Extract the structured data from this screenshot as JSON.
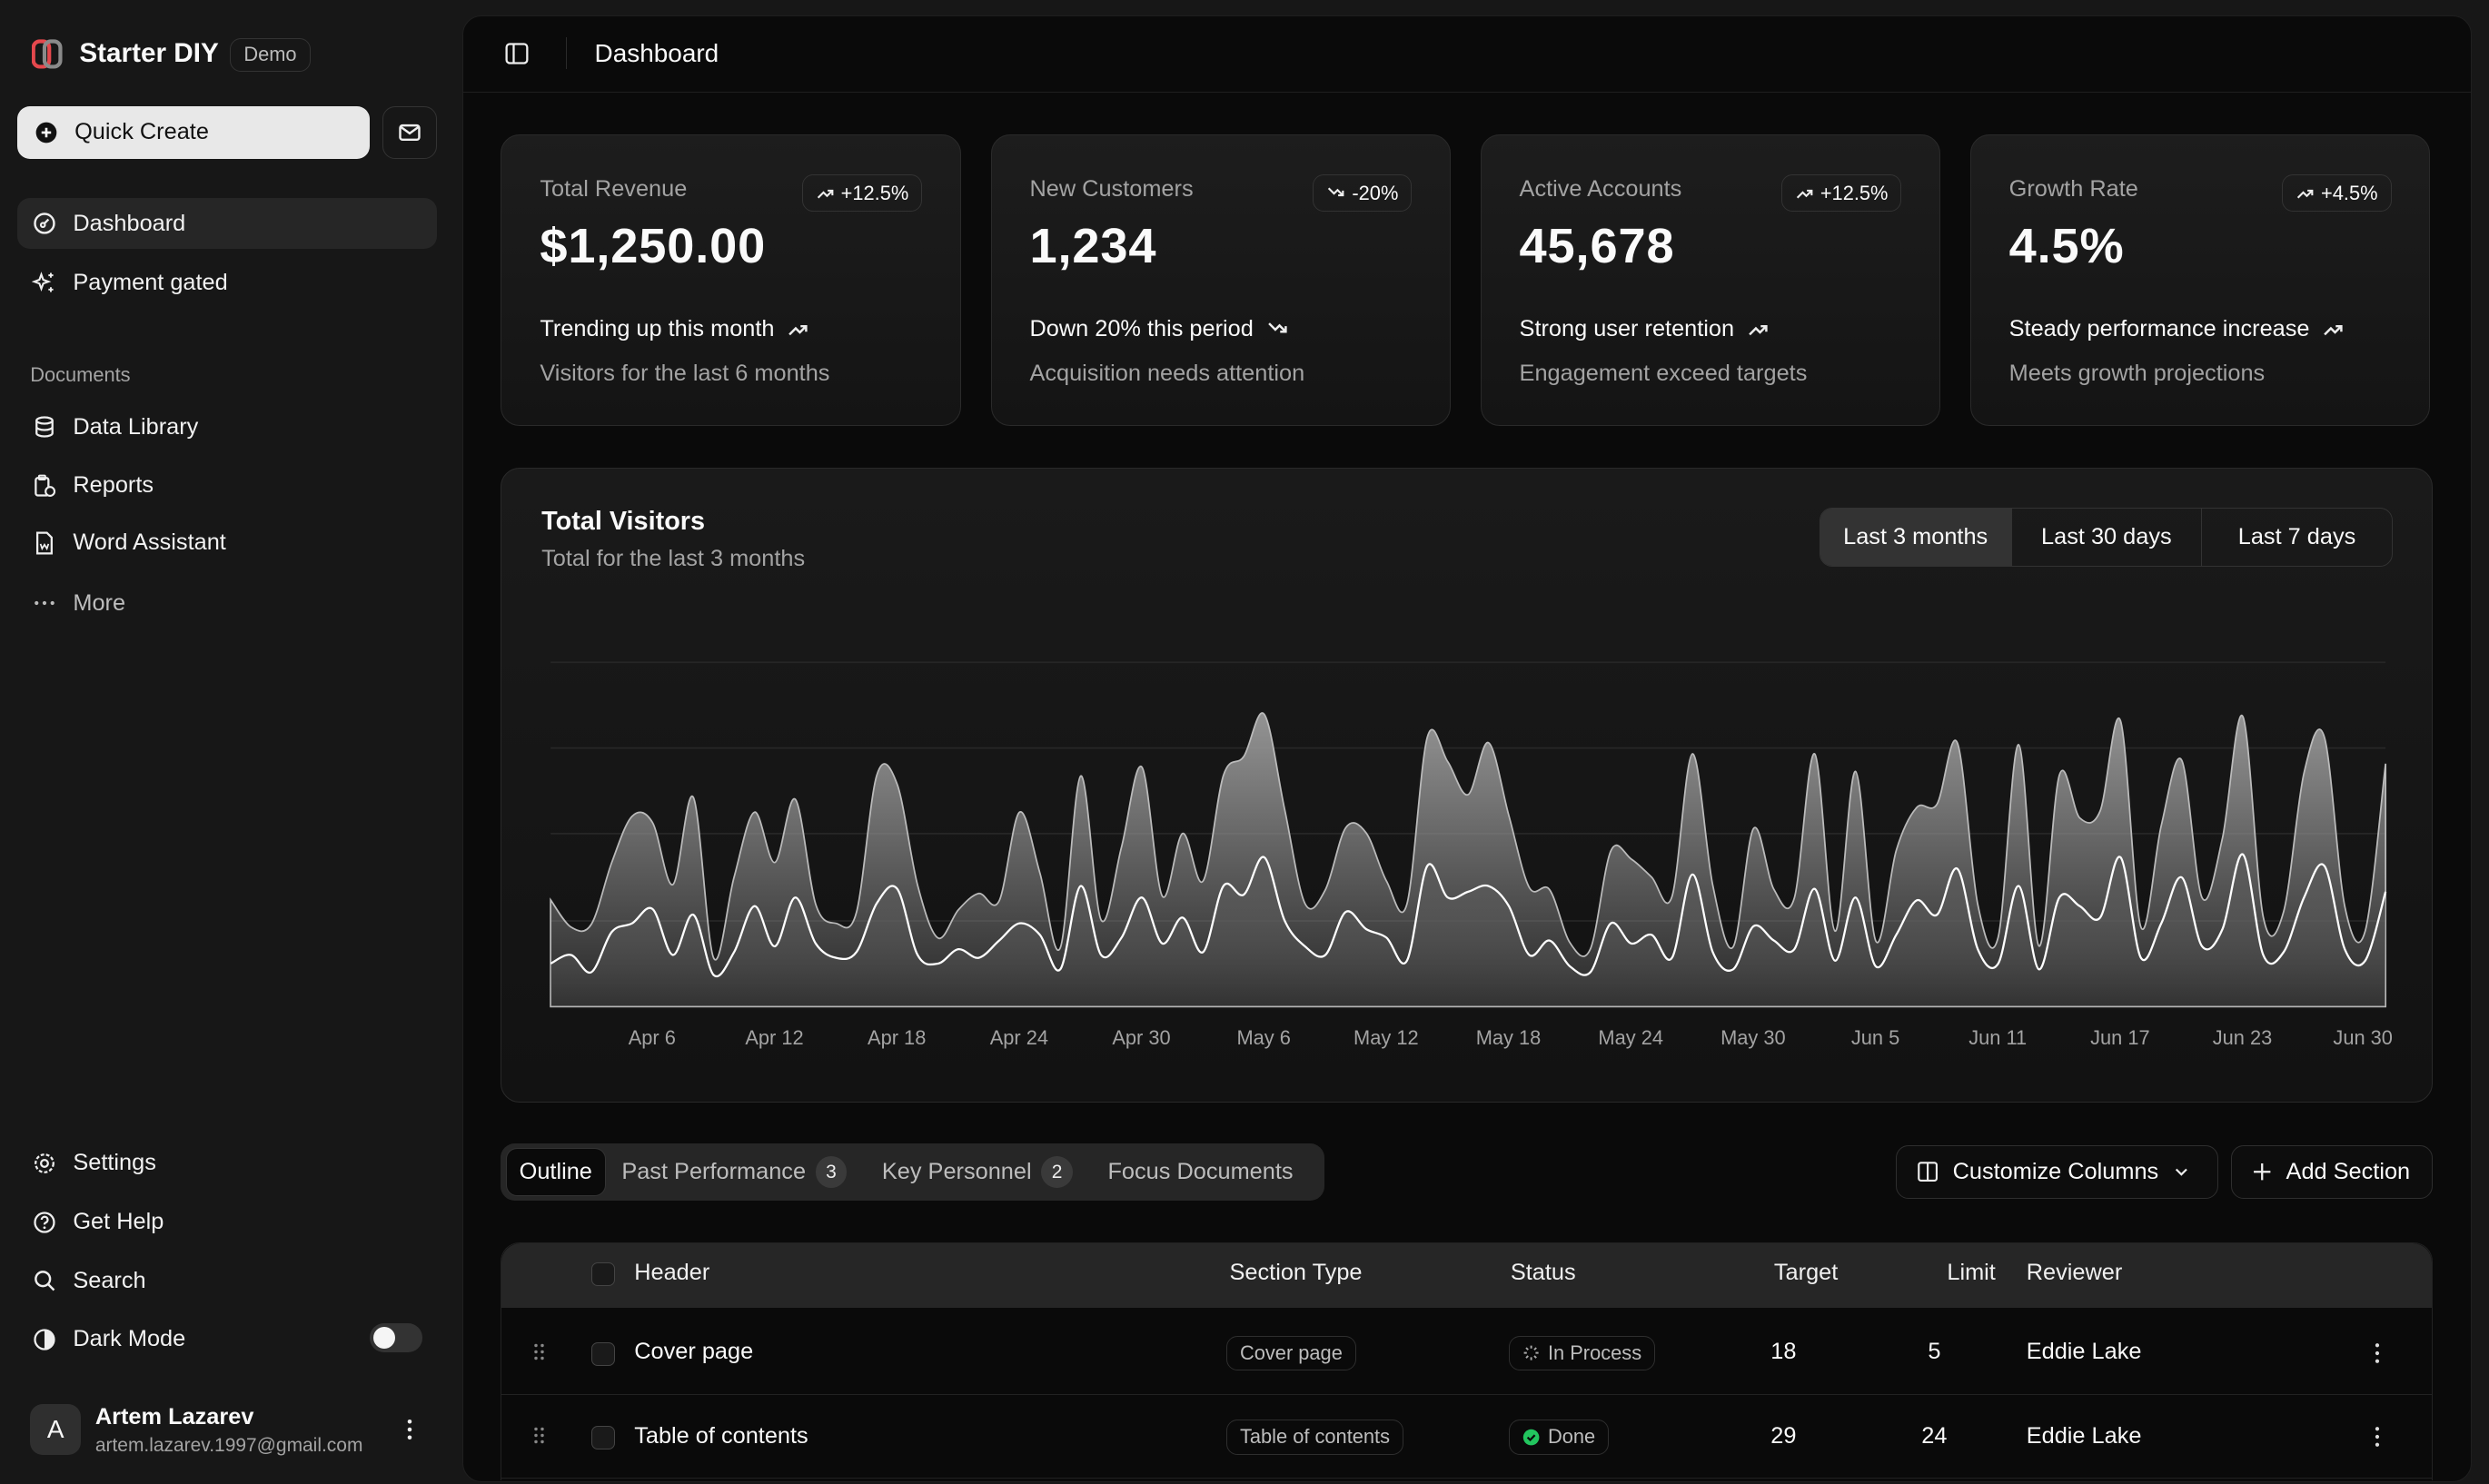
{
  "app": {
    "name": "Starter DIY",
    "badge": "Demo"
  },
  "sidebar": {
    "quick_create": "Quick Create",
    "nav": [
      {
        "label": "Dashboard",
        "icon": "gauge-icon",
        "active": true
      },
      {
        "label": "Payment gated",
        "icon": "sparkles-icon"
      }
    ],
    "documents_label": "Documents",
    "documents": [
      {
        "label": "Data Library",
        "icon": "database-icon"
      },
      {
        "label": "Reports",
        "icon": "clipboard-clock-icon"
      },
      {
        "label": "Word Assistant",
        "icon": "word-file-icon"
      },
      {
        "label": "More",
        "icon": "dots-icon"
      }
    ],
    "bottom": [
      {
        "label": "Settings",
        "icon": "gear-icon"
      },
      {
        "label": "Get Help",
        "icon": "help-icon"
      },
      {
        "label": "Search",
        "icon": "search-icon"
      },
      {
        "label": "Dark Mode",
        "icon": "theme-icon"
      }
    ],
    "dark_mode_on": false,
    "user": {
      "initial": "A",
      "name": "Artem Lazarev",
      "email": "artem.lazarev.1997@gmail.com"
    }
  },
  "header": {
    "title": "Dashboard"
  },
  "cards": [
    {
      "label": "Total Revenue",
      "value": "$1,250.00",
      "badge": "+12.5%",
      "trend": "up",
      "line1": "Trending up this month",
      "line2": "Visitors for the last 6 months"
    },
    {
      "label": "New Customers",
      "value": "1,234",
      "badge": "-20%",
      "trend": "down",
      "line1": "Down 20% this period",
      "line2": "Acquisition needs attention"
    },
    {
      "label": "Active Accounts",
      "value": "45,678",
      "badge": "+12.5%",
      "trend": "up",
      "line1": "Strong user retention",
      "line2": "Engagement exceed targets"
    },
    {
      "label": "Growth Rate",
      "value": "4.5%",
      "badge": "+4.5%",
      "trend": "up",
      "line1": "Steady performance increase",
      "line2": "Meets growth projections"
    }
  ],
  "visitors": {
    "title": "Total Visitors",
    "subtitle": "Total for the last 3 months",
    "ranges": [
      "Last 3 months",
      "Last 30 days",
      "Last 7 days"
    ],
    "selected_range": "Last 3 months"
  },
  "chart_data": {
    "type": "area",
    "stacked": true,
    "grid": true,
    "x_start": "Apr 1",
    "x_end": "Jun 30",
    "x_ticks": [
      "Apr 6",
      "Apr 12",
      "Apr 18",
      "Apr 24",
      "Apr 30",
      "May 6",
      "May 12",
      "May 18",
      "May 24",
      "May 30",
      "Jun 5",
      "Jun 11",
      "Jun 17",
      "Jun 23",
      "Jun 30"
    ],
    "colors": {
      "top": "#9a9a9a",
      "bottom": "#5a5a5a",
      "line": "#ffffff"
    },
    "series": [
      {
        "values": [
          150,
          180,
          120,
          260,
          290,
          340,
          180,
          320,
          110,
          190,
          350,
          210,
          380,
          220,
          170,
          190,
          360,
          410,
          180,
          150,
          200,
          170,
          230,
          290,
          250,
          130,
          420,
          180,
          240,
          380,
          220,
          310,
          190,
          420,
          390,
          520,
          300,
          210,
          180,
          330,
          270,
          240,
          160,
          490,
          380,
          400,
          420,
          350,
          180,
          230,
          140,
          120,
          290,
          220,
          250,
          170,
          460,
          190,
          130,
          280,
          230,
          200,
          410,
          160,
          380,
          140,
          250,
          370,
          320,
          480,
          200,
          150,
          420,
          130,
          380,
          350,
          310,
          520,
          170,
          290,
          450,
          210,
          270,
          530,
          180,
          190,
          380,
          490,
          200,
          160,
          400
        ]
      },
      {
        "values": [
          222,
          97,
          167,
          242,
          373,
          301,
          245,
          409,
          59,
          261,
          327,
          292,
          342,
          137,
          120,
          138,
          446,
          364,
          243,
          89,
          137,
          224,
          138,
          387,
          215,
          75,
          383,
          122,
          315,
          454,
          165,
          293,
          247,
          385,
          481,
          498,
          388,
          149,
          227,
          293,
          335,
          197,
          197,
          448,
          473,
          338,
          499,
          315,
          235,
          177,
          82,
          81,
          252,
          294,
          201,
          213,
          420,
          233,
          78,
          340,
          178,
          178,
          470,
          103,
          439,
          88,
          294,
          323,
          385,
          438,
          155,
          92,
          492,
          81,
          426,
          307,
          371,
          475,
          107,
          341,
          408,
          169,
          317,
          480,
          132,
          141,
          434,
          448,
          149,
          103,
          446
        ]
      }
    ]
  },
  "tabs": [
    {
      "label": "Outline",
      "active": true
    },
    {
      "label": "Past Performance",
      "count": "3"
    },
    {
      "label": "Key Personnel",
      "count": "2"
    },
    {
      "label": "Focus Documents"
    }
  ],
  "actions": {
    "customize": "Customize Columns",
    "add": "Add Section"
  },
  "table": {
    "columns": [
      "Header",
      "Section Type",
      "Status",
      "Target",
      "Limit",
      "Reviewer"
    ],
    "rows": [
      {
        "header": "Cover page",
        "type": "Cover page",
        "status": "In Process",
        "target": "18",
        "limit": "5",
        "reviewer": "Eddie Lake"
      },
      {
        "header": "Table of contents",
        "type": "Table of contents",
        "status": "Done",
        "target": "29",
        "limit": "24",
        "reviewer": "Eddie Lake"
      }
    ]
  }
}
